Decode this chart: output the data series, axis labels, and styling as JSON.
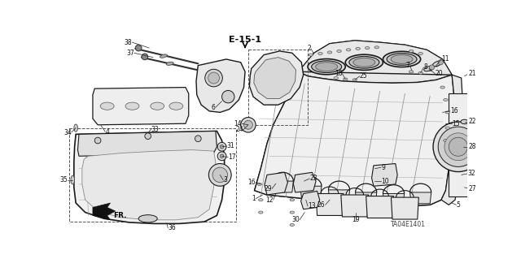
{
  "bg_color": "#ffffff",
  "diagram_code": "E-15-1",
  "part_code": "TA04E1401",
  "fr_label": "FR.",
  "line_color": "#1a1a1a",
  "label_color": "#111111",
  "fill_light": "#f0f0f0",
  "fill_mid": "#e0e0e0",
  "fill_dark": "#c8c8c8"
}
